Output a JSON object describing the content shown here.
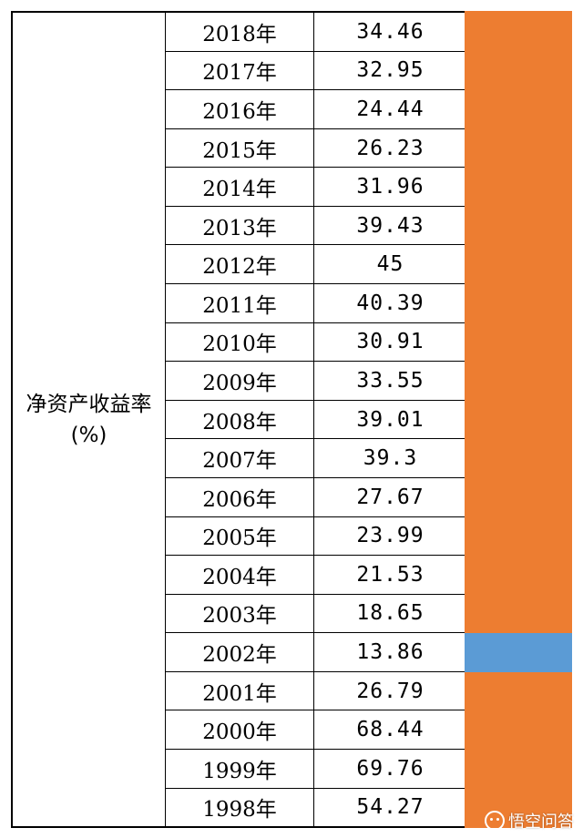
{
  "table": {
    "row_label": "净资产收益率(%)",
    "rows": [
      {
        "year": "2018年",
        "value": "34.46"
      },
      {
        "year": "2017年",
        "value": "32.95"
      },
      {
        "year": "2016年",
        "value": "24.44"
      },
      {
        "year": "2015年",
        "value": "26.23"
      },
      {
        "year": "2014年",
        "value": "31.96"
      },
      {
        "year": "2013年",
        "value": "39.43"
      },
      {
        "year": "2012年",
        "value": "45"
      },
      {
        "year": "2011年",
        "value": "40.39"
      },
      {
        "year": "2010年",
        "value": "30.91"
      },
      {
        "year": "2009年",
        "value": "33.55"
      },
      {
        "year": "2008年",
        "value": "39.01"
      },
      {
        "year": "2007年",
        "value": "39.3"
      },
      {
        "year": "2006年",
        "value": "27.67"
      },
      {
        "year": "2005年",
        "value": "23.99"
      },
      {
        "year": "2004年",
        "value": "21.53"
      },
      {
        "year": "2003年",
        "value": "18.65"
      },
      {
        "year": "2002年",
        "value": "13.86"
      },
      {
        "year": "2001年",
        "value": "26.79"
      },
      {
        "year": "2000年",
        "value": "68.44"
      },
      {
        "year": "1999年",
        "value": "69.76"
      },
      {
        "year": "1998年",
        "value": "54.27"
      }
    ]
  },
  "side_bar": {
    "highlight_year": "2002年",
    "colors": {
      "default": "#ed7d31",
      "highlight": "#5b9bd5"
    }
  },
  "watermark": {
    "text": "悟空问答",
    "icon": "wukong-logo-icon"
  }
}
